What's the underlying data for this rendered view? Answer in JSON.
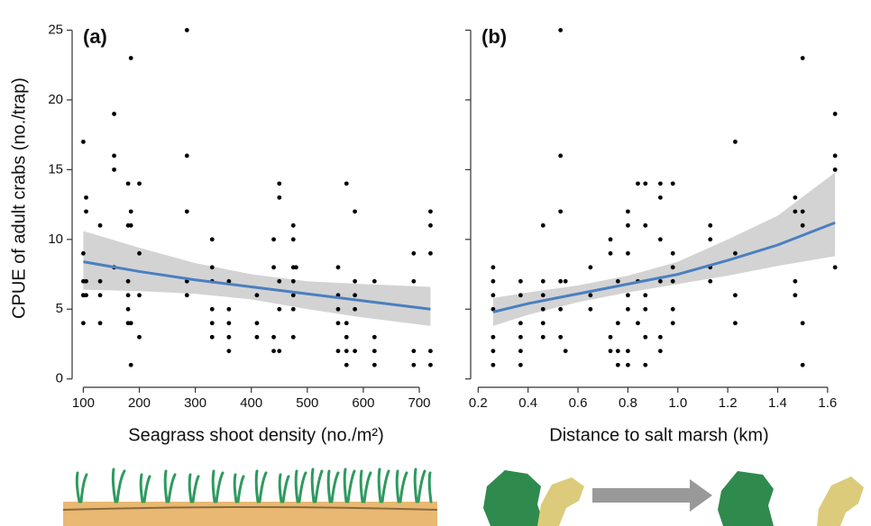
{
  "chart_data": [
    {
      "type": "scatter",
      "panel_label": "(a)",
      "ylabel": "CPUE of adult crabs (no./trap)",
      "xlabel": "Seagrass shoot density (no./m²)",
      "xlim": [
        80,
        737
      ],
      "ylim": [
        -0.6,
        26
      ],
      "xticks": [
        100,
        200,
        300,
        400,
        500,
        600,
        700
      ],
      "yticks": [
        0,
        5,
        10,
        15,
        20,
        25
      ],
      "point_color": "#000000",
      "fit_color": "#4a7fc0",
      "band_color": "#d3d3d3",
      "x": [
        100,
        100,
        100,
        100,
        100,
        100,
        105,
        105,
        105,
        105,
        130,
        130,
        130,
        130,
        155,
        155,
        155,
        155,
        180,
        180,
        180,
        180,
        180,
        180,
        185,
        185,
        185,
        185,
        185,
        200,
        200,
        200,
        200,
        285,
        285,
        285,
        285,
        285,
        330,
        330,
        330,
        330,
        330,
        330,
        360,
        360,
        360,
        360,
        360,
        410,
        410,
        410,
        440,
        440,
        440,
        440,
        450,
        450,
        450,
        450,
        450,
        475,
        475,
        475,
        475,
        475,
        475,
        475,
        480,
        555,
        555,
        555,
        555,
        555,
        570,
        570,
        570,
        570,
        570,
        585,
        585,
        585,
        585,
        585,
        620,
        620,
        620,
        620,
        690,
        690,
        690,
        690,
        720,
        720,
        720,
        720,
        720
      ],
      "y": [
        17,
        9,
        7,
        6,
        6,
        4,
        13,
        12,
        7,
        6,
        11,
        7,
        6,
        4,
        19,
        16,
        15,
        8,
        14,
        11,
        7,
        6,
        5,
        4,
        23,
        12,
        11,
        4,
        1,
        14,
        9,
        6,
        3,
        25,
        16,
        12,
        7,
        6,
        10,
        8,
        7,
        5,
        4,
        3,
        7,
        5,
        4,
        3,
        2,
        6,
        4,
        3,
        10,
        8,
        3,
        2,
        14,
        13,
        7,
        5,
        2,
        11,
        10,
        8,
        7,
        6,
        5,
        3,
        8,
        8,
        6,
        5,
        4,
        2,
        14,
        4,
        3,
        2,
        1,
        12,
        7,
        6,
        5,
        2,
        7,
        3,
        2,
        1,
        9,
        7,
        2,
        1,
        12,
        11,
        9,
        2,
        1
      ],
      "fit": {
        "x": [
          100,
          200,
          300,
          400,
          500,
          600,
          720
        ],
        "y": [
          8.4,
          7.7,
          7.1,
          6.6,
          6.1,
          5.6,
          5.0
        ],
        "lower": [
          6.4,
          6.3,
          6.1,
          5.7,
          5.0,
          4.4,
          3.8
        ],
        "upper": [
          10.6,
          9.4,
          8.3,
          7.5,
          7.0,
          6.8,
          6.6
        ]
      }
    },
    {
      "type": "scatter",
      "panel_label": "(b)",
      "xlabel": "Distance to salt marsh (km)",
      "xlim": [
        0.17,
        1.68
      ],
      "ylim": [
        -0.6,
        26
      ],
      "xticks": [
        0.2,
        0.4,
        0.6,
        0.8,
        {
          "value": 1,
          "label": "1.0"
        },
        1.2,
        1.4,
        1.6
      ],
      "yticks": [
        0,
        5,
        10,
        15,
        20,
        25
      ],
      "point_color": "#000000",
      "fit_color": "#4a7fc0",
      "band_color": "#d3d3d3",
      "x": [
        0.26,
        0.26,
        0.26,
        0.26,
        0.26,
        0.26,
        0.26,
        0.37,
        0.37,
        0.37,
        0.37,
        0.37,
        0.37,
        0.46,
        0.46,
        0.46,
        0.46,
        0.46,
        0.46,
        0.53,
        0.53,
        0.53,
        0.53,
        0.53,
        0.53,
        0.55,
        0.55,
        0.65,
        0.65,
        0.65,
        0.73,
        0.73,
        0.73,
        0.73,
        0.76,
        0.76,
        0.76,
        0.76,
        0.8,
        0.8,
        0.8,
        0.8,
        0.8,
        0.8,
        0.8,
        0.84,
        0.84,
        0.84,
        0.87,
        0.87,
        0.87,
        0.87,
        0.87,
        0.87,
        0.93,
        0.93,
        0.93,
        0.93,
        0.93,
        0.93,
        0.98,
        0.98,
        0.98,
        0.98,
        0.98,
        0.98,
        1.13,
        1.13,
        1.13,
        1.13,
        1.23,
        1.23,
        1.23,
        1.23,
        1.47,
        1.47,
        1.47,
        1.47,
        1.5,
        1.5,
        1.5,
        1.5,
        1.5,
        1.63,
        1.63,
        1.63,
        1.63
      ],
      "y": [
        8,
        7,
        6,
        5,
        3,
        2,
        1,
        7,
        6,
        4,
        3,
        2,
        1,
        11,
        7,
        6,
        5,
        4,
        3,
        25,
        16,
        12,
        7,
        5,
        3,
        7,
        2,
        8,
        6,
        5,
        10,
        9,
        3,
        2,
        7,
        4,
        2,
        1,
        12,
        11,
        9,
        6,
        5,
        2,
        1,
        14,
        7,
        4,
        14,
        11,
        6,
        5,
        3,
        1,
        14,
        13,
        10,
        7,
        3,
        2,
        14,
        9,
        8,
        7,
        5,
        4,
        11,
        10,
        8,
        7,
        17,
        9,
        6,
        4,
        13,
        12,
        7,
        6,
        23,
        12,
        11,
        4,
        1,
        19,
        16,
        15,
        8
      ],
      "fit": {
        "x": [
          0.26,
          0.4,
          0.6,
          0.8,
          1.0,
          1.2,
          1.4,
          1.63
        ],
        "y": [
          4.8,
          5.4,
          6.1,
          6.8,
          7.5,
          8.5,
          9.6,
          11.2
        ],
        "lower": [
          3.8,
          4.6,
          5.5,
          6.2,
          6.8,
          7.4,
          8.1,
          8.8
        ],
        "upper": [
          5.8,
          6.2,
          6.7,
          7.4,
          8.4,
          10.0,
          11.7,
          14.8
        ]
      }
    }
  ]
}
